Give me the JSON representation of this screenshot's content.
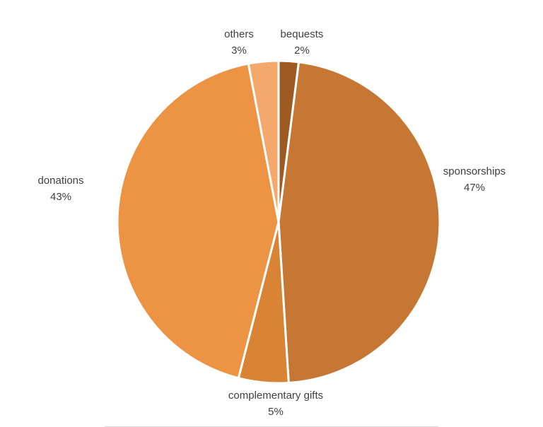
{
  "chart_data": {
    "type": "pie",
    "title": "",
    "legend": "none",
    "slices": [
      {
        "label": "bequests",
        "value": 2,
        "value_label": "2%",
        "color": "#9e5a22"
      },
      {
        "label": "sponsorships",
        "value": 47,
        "value_label": "47%",
        "color": "#c67733"
      },
      {
        "label": "complementary gifts",
        "value": 5,
        "value_label": "5%",
        "color": "#d98435"
      },
      {
        "label": "donations",
        "value": 43,
        "value_label": "43%",
        "color": "#ed9444"
      },
      {
        "label": "others",
        "value": 3,
        "value_label": "3%",
        "color": "#f5a86b"
      }
    ]
  }
}
